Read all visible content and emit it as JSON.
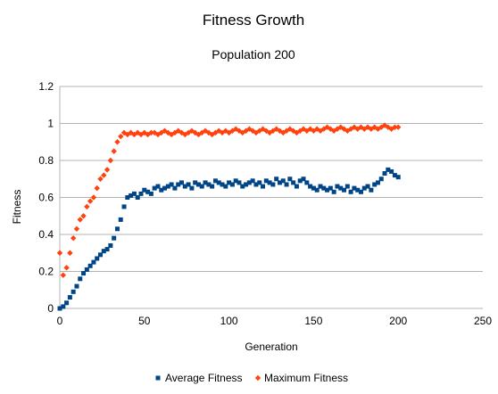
{
  "chart_data": {
    "type": "scatter",
    "title": "Fitness Growth",
    "subtitle": "Population 200",
    "xlabel": "Generation",
    "ylabel": "Fitness",
    "xlim": [
      0,
      250
    ],
    "ylim": [
      0,
      1.2
    ],
    "xticks": [
      "0",
      "50",
      "100",
      "150",
      "200",
      "250"
    ],
    "yticks": [
      "0",
      "0.2",
      "0.4",
      "0.6",
      "0.8",
      "1",
      "1.2"
    ],
    "grid": "horizontal",
    "legend": "bottom",
    "series": [
      {
        "name": "Average Fitness",
        "marker": "square",
        "color": "#004586",
        "x": [
          0,
          2,
          4,
          6,
          8,
          10,
          12,
          14,
          16,
          18,
          20,
          22,
          24,
          26,
          28,
          30,
          32,
          34,
          36,
          38,
          40,
          42,
          44,
          46,
          48,
          50,
          52,
          54,
          56,
          58,
          60,
          62,
          64,
          66,
          68,
          70,
          72,
          74,
          76,
          78,
          80,
          82,
          84,
          86,
          88,
          90,
          92,
          94,
          96,
          98,
          100,
          102,
          104,
          106,
          108,
          110,
          112,
          114,
          116,
          118,
          120,
          122,
          124,
          126,
          128,
          130,
          132,
          134,
          136,
          138,
          140,
          142,
          144,
          146,
          148,
          150,
          152,
          154,
          156,
          158,
          160,
          162,
          164,
          166,
          168,
          170,
          172,
          174,
          176,
          178,
          180,
          182,
          184,
          186,
          188,
          190,
          192,
          194,
          196,
          198,
          200
        ],
        "y": [
          0.0,
          0.01,
          0.03,
          0.06,
          0.09,
          0.12,
          0.16,
          0.19,
          0.21,
          0.23,
          0.25,
          0.27,
          0.29,
          0.31,
          0.32,
          0.34,
          0.38,
          0.43,
          0.48,
          0.55,
          0.6,
          0.61,
          0.62,
          0.6,
          0.62,
          0.64,
          0.63,
          0.62,
          0.65,
          0.66,
          0.64,
          0.65,
          0.66,
          0.67,
          0.65,
          0.67,
          0.68,
          0.66,
          0.67,
          0.65,
          0.68,
          0.67,
          0.66,
          0.68,
          0.67,
          0.66,
          0.69,
          0.68,
          0.67,
          0.66,
          0.68,
          0.67,
          0.69,
          0.68,
          0.66,
          0.67,
          0.68,
          0.69,
          0.67,
          0.68,
          0.66,
          0.69,
          0.68,
          0.67,
          0.7,
          0.68,
          0.69,
          0.67,
          0.7,
          0.68,
          0.66,
          0.69,
          0.7,
          0.68,
          0.66,
          0.65,
          0.64,
          0.66,
          0.65,
          0.64,
          0.65,
          0.63,
          0.66,
          0.65,
          0.64,
          0.66,
          0.63,
          0.65,
          0.64,
          0.63,
          0.65,
          0.66,
          0.64,
          0.67,
          0.68,
          0.7,
          0.73,
          0.75,
          0.74,
          0.72,
          0.71
        ]
      },
      {
        "name": "Maximum Fitness",
        "marker": "diamond",
        "color": "#ff420e",
        "x": [
          0,
          2,
          4,
          6,
          8,
          10,
          12,
          14,
          16,
          18,
          20,
          22,
          24,
          26,
          28,
          30,
          32,
          34,
          36,
          38,
          40,
          42,
          44,
          46,
          48,
          50,
          52,
          54,
          56,
          58,
          60,
          62,
          64,
          66,
          68,
          70,
          72,
          74,
          76,
          78,
          80,
          82,
          84,
          86,
          88,
          90,
          92,
          94,
          96,
          98,
          100,
          102,
          104,
          106,
          108,
          110,
          112,
          114,
          116,
          118,
          120,
          122,
          124,
          126,
          128,
          130,
          132,
          134,
          136,
          138,
          140,
          142,
          144,
          146,
          148,
          150,
          152,
          154,
          156,
          158,
          160,
          162,
          164,
          166,
          168,
          170,
          172,
          174,
          176,
          178,
          180,
          182,
          184,
          186,
          188,
          190,
          192,
          194,
          196,
          198,
          200
        ],
        "y": [
          0.3,
          0.18,
          0.22,
          0.3,
          0.38,
          0.43,
          0.48,
          0.5,
          0.55,
          0.58,
          0.6,
          0.65,
          0.7,
          0.72,
          0.75,
          0.8,
          0.85,
          0.9,
          0.93,
          0.95,
          0.94,
          0.95,
          0.94,
          0.95,
          0.94,
          0.95,
          0.94,
          0.95,
          0.95,
          0.94,
          0.95,
          0.96,
          0.95,
          0.94,
          0.95,
          0.96,
          0.95,
          0.94,
          0.95,
          0.96,
          0.95,
          0.94,
          0.95,
          0.96,
          0.95,
          0.94,
          0.95,
          0.96,
          0.95,
          0.96,
          0.95,
          0.96,
          0.97,
          0.96,
          0.95,
          0.96,
          0.97,
          0.96,
          0.95,
          0.96,
          0.97,
          0.96,
          0.95,
          0.96,
          0.97,
          0.96,
          0.95,
          0.96,
          0.97,
          0.96,
          0.95,
          0.96,
          0.97,
          0.96,
          0.97,
          0.96,
          0.97,
          0.96,
          0.97,
          0.98,
          0.97,
          0.96,
          0.97,
          0.98,
          0.97,
          0.96,
          0.97,
          0.98,
          0.97,
          0.98,
          0.97,
          0.98,
          0.97,
          0.98,
          0.97,
          0.98,
          0.99,
          0.98,
          0.97,
          0.98,
          0.98
        ]
      }
    ]
  }
}
